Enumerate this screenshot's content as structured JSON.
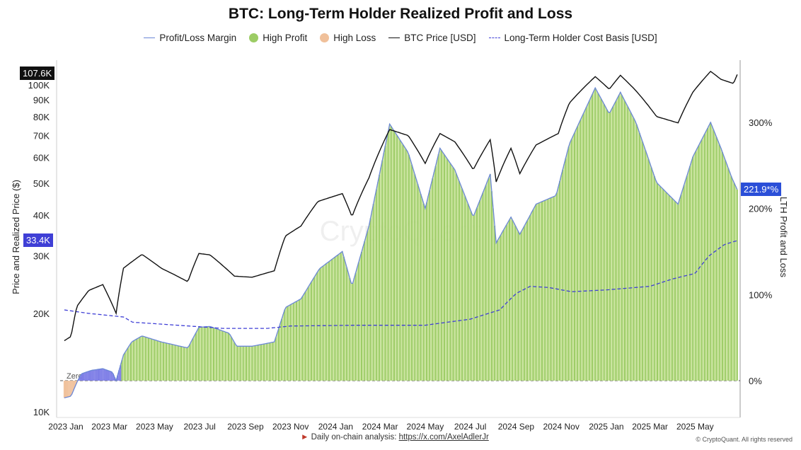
{
  "chart_data": {
    "type": "bar+line",
    "title": "BTC: Long-Term Holder Realized Profit and Loss",
    "ylabel": "Price and Realized Price ($)",
    "y2label": "LTH Profit and Loss",
    "yscale": "log",
    "ylim": [
      10000,
      110000
    ],
    "y_ticks": [
      "10K",
      "20K",
      "30K",
      "40K",
      "50K",
      "60K",
      "70K",
      "80K",
      "90K",
      "100K"
    ],
    "y_tick_values": [
      10000,
      20000,
      30000,
      40000,
      50000,
      60000,
      70000,
      80000,
      90000,
      100000
    ],
    "y2lim": [
      -30,
      370
    ],
    "y2_ticks": [
      "0%",
      "100%",
      "200%",
      "300%"
    ],
    "y2_tick_values": [
      0,
      100,
      200,
      300
    ],
    "x_ticks": [
      "2023 Jan",
      "2023 Mar",
      "2023 May",
      "2023 Jul",
      "2023 Sep",
      "2023 Nov",
      "2024 Jan",
      "2024 Mar",
      "2024 May",
      "2024 Jul",
      "2024 Sep",
      "2024 Nov",
      "2025 Jan",
      "2025 Mar",
      "2025 May"
    ],
    "x_tick_dates": [
      "2023-01-01",
      "2023-03-01",
      "2023-05-01",
      "2023-07-01",
      "2023-09-01",
      "2023-11-01",
      "2024-01-01",
      "2024-03-01",
      "2024-05-01",
      "2024-07-01",
      "2024-09-01",
      "2024-11-01",
      "2025-01-01",
      "2025-03-01",
      "2025-05-01"
    ],
    "xlim": [
      "2022-12-28",
      "2025-06-28"
    ],
    "zero_label": "Zero",
    "legend_position": "top",
    "series": [
      {
        "name": "Profit/Loss Margin",
        "axis": "right",
        "color": "#6b87d6",
        "points": [
          [
            "2022-12-30",
            -20
          ],
          [
            "2023-01-08",
            -18
          ],
          [
            "2023-01-16",
            -2
          ],
          [
            "2023-01-22",
            8
          ],
          [
            "2023-02-05",
            12
          ],
          [
            "2023-02-20",
            14
          ],
          [
            "2023-03-05",
            10
          ],
          [
            "2023-03-10",
            0
          ],
          [
            "2023-03-20",
            30
          ],
          [
            "2023-03-31",
            45
          ],
          [
            "2023-04-14",
            52
          ],
          [
            "2023-05-10",
            45
          ],
          [
            "2023-06-15",
            38
          ],
          [
            "2023-06-30",
            62
          ],
          [
            "2023-07-15",
            63
          ],
          [
            "2023-08-10",
            55
          ],
          [
            "2023-08-20",
            40
          ],
          [
            "2023-09-10",
            40
          ],
          [
            "2023-10-10",
            45
          ],
          [
            "2023-10-25",
            85
          ],
          [
            "2023-11-15",
            95
          ],
          [
            "2023-12-10",
            130
          ],
          [
            "2024-01-10",
            150
          ],
          [
            "2024-01-23",
            110
          ],
          [
            "2024-02-15",
            180
          ],
          [
            "2024-03-14",
            298
          ],
          [
            "2024-04-08",
            265
          ],
          [
            "2024-05-01",
            200
          ],
          [
            "2024-05-21",
            270
          ],
          [
            "2024-06-10",
            245
          ],
          [
            "2024-07-05",
            190
          ],
          [
            "2024-07-28",
            240
          ],
          [
            "2024-08-05",
            160
          ],
          [
            "2024-08-25",
            190
          ],
          [
            "2024-09-06",
            170
          ],
          [
            "2024-09-28",
            205
          ],
          [
            "2024-10-25",
            215
          ],
          [
            "2024-11-12",
            275
          ],
          [
            "2024-12-17",
            340
          ],
          [
            "2025-01-05",
            310
          ],
          [
            "2025-01-20",
            335
          ],
          [
            "2025-02-10",
            300
          ],
          [
            "2025-03-10",
            230
          ],
          [
            "2025-04-08",
            205
          ],
          [
            "2025-04-28",
            260
          ],
          [
            "2025-05-22",
            300
          ],
          [
            "2025-06-05",
            270
          ],
          [
            "2025-06-20",
            235
          ],
          [
            "2025-06-27",
            221.9
          ]
        ]
      },
      {
        "name": "High Profit",
        "color": "#9ccc65"
      },
      {
        "name": "High Loss",
        "color": "#f0c09a"
      },
      {
        "name": "BTC Price [USD]",
        "axis": "left",
        "color": "#111111",
        "points": [
          [
            "2022-12-30",
            16500
          ],
          [
            "2023-01-08",
            17000
          ],
          [
            "2023-01-16",
            21000
          ],
          [
            "2023-02-01",
            23500
          ],
          [
            "2023-02-20",
            24500
          ],
          [
            "2023-03-10",
            20000
          ],
          [
            "2023-03-20",
            27500
          ],
          [
            "2023-04-14",
            30300
          ],
          [
            "2023-05-10",
            27500
          ],
          [
            "2023-06-15",
            25000
          ],
          [
            "2023-06-30",
            30500
          ],
          [
            "2023-07-15",
            30200
          ],
          [
            "2023-08-17",
            26000
          ],
          [
            "2023-09-10",
            25800
          ],
          [
            "2023-10-10",
            27000
          ],
          [
            "2023-10-25",
            34500
          ],
          [
            "2023-11-15",
            37000
          ],
          [
            "2023-12-08",
            44000
          ],
          [
            "2024-01-10",
            46500
          ],
          [
            "2024-01-23",
            39500
          ],
          [
            "2024-02-15",
            52000
          ],
          [
            "2024-03-14",
            73000
          ],
          [
            "2024-04-08",
            70000
          ],
          [
            "2024-05-01",
            57500
          ],
          [
            "2024-05-21",
            71000
          ],
          [
            "2024-06-10",
            67000
          ],
          [
            "2024-07-05",
            55000
          ],
          [
            "2024-07-28",
            68000
          ],
          [
            "2024-08-05",
            50500
          ],
          [
            "2024-08-25",
            64000
          ],
          [
            "2024-09-06",
            53500
          ],
          [
            "2024-09-28",
            65500
          ],
          [
            "2024-10-28",
            71000
          ],
          [
            "2024-11-12",
            88000
          ],
          [
            "2024-12-17",
            106000
          ],
          [
            "2025-01-05",
            97000
          ],
          [
            "2025-01-20",
            107000
          ],
          [
            "2025-02-10",
            96000
          ],
          [
            "2025-03-10",
            80000
          ],
          [
            "2025-04-08",
            76500
          ],
          [
            "2025-04-28",
            95000
          ],
          [
            "2025-05-22",
            110000
          ],
          [
            "2025-06-05",
            104000
          ],
          [
            "2025-06-22",
            101000
          ],
          [
            "2025-06-27",
            107600
          ]
        ]
      },
      {
        "name": "Long-Term Holder Cost Basis [USD]",
        "axis": "left",
        "color": "#3f3fd6",
        "dashed": true,
        "points": [
          [
            "2022-12-30",
            20500
          ],
          [
            "2023-02-01",
            20000
          ],
          [
            "2023-03-20",
            19500
          ],
          [
            "2023-04-01",
            18800
          ],
          [
            "2023-06-01",
            18400
          ],
          [
            "2023-08-01",
            18000
          ],
          [
            "2023-10-01",
            18000
          ],
          [
            "2023-11-01",
            18300
          ],
          [
            "2024-02-01",
            18400
          ],
          [
            "2024-05-01",
            18400
          ],
          [
            "2024-07-01",
            19200
          ],
          [
            "2024-08-10",
            20500
          ],
          [
            "2024-09-01",
            23000
          ],
          [
            "2024-09-20",
            24200
          ],
          [
            "2024-10-15",
            24000
          ],
          [
            "2024-11-15",
            23300
          ],
          [
            "2025-01-01",
            23600
          ],
          [
            "2025-03-01",
            24200
          ],
          [
            "2025-04-01",
            25500
          ],
          [
            "2025-05-01",
            26500
          ],
          [
            "2025-05-20",
            30000
          ],
          [
            "2025-06-10",
            32500
          ],
          [
            "2025-06-27",
            33400
          ]
        ]
      }
    ],
    "badges": {
      "price": "107.6K",
      "cost_basis": "33.4K",
      "margin": "221.9*%"
    }
  },
  "watermark": "CryptoQuant",
  "footer": {
    "text": "Daily on-chain analysis: ",
    "link": "https://x.com/AxelAdlerJr",
    "copyright": "© CryptoQuant. All rights reserved"
  }
}
